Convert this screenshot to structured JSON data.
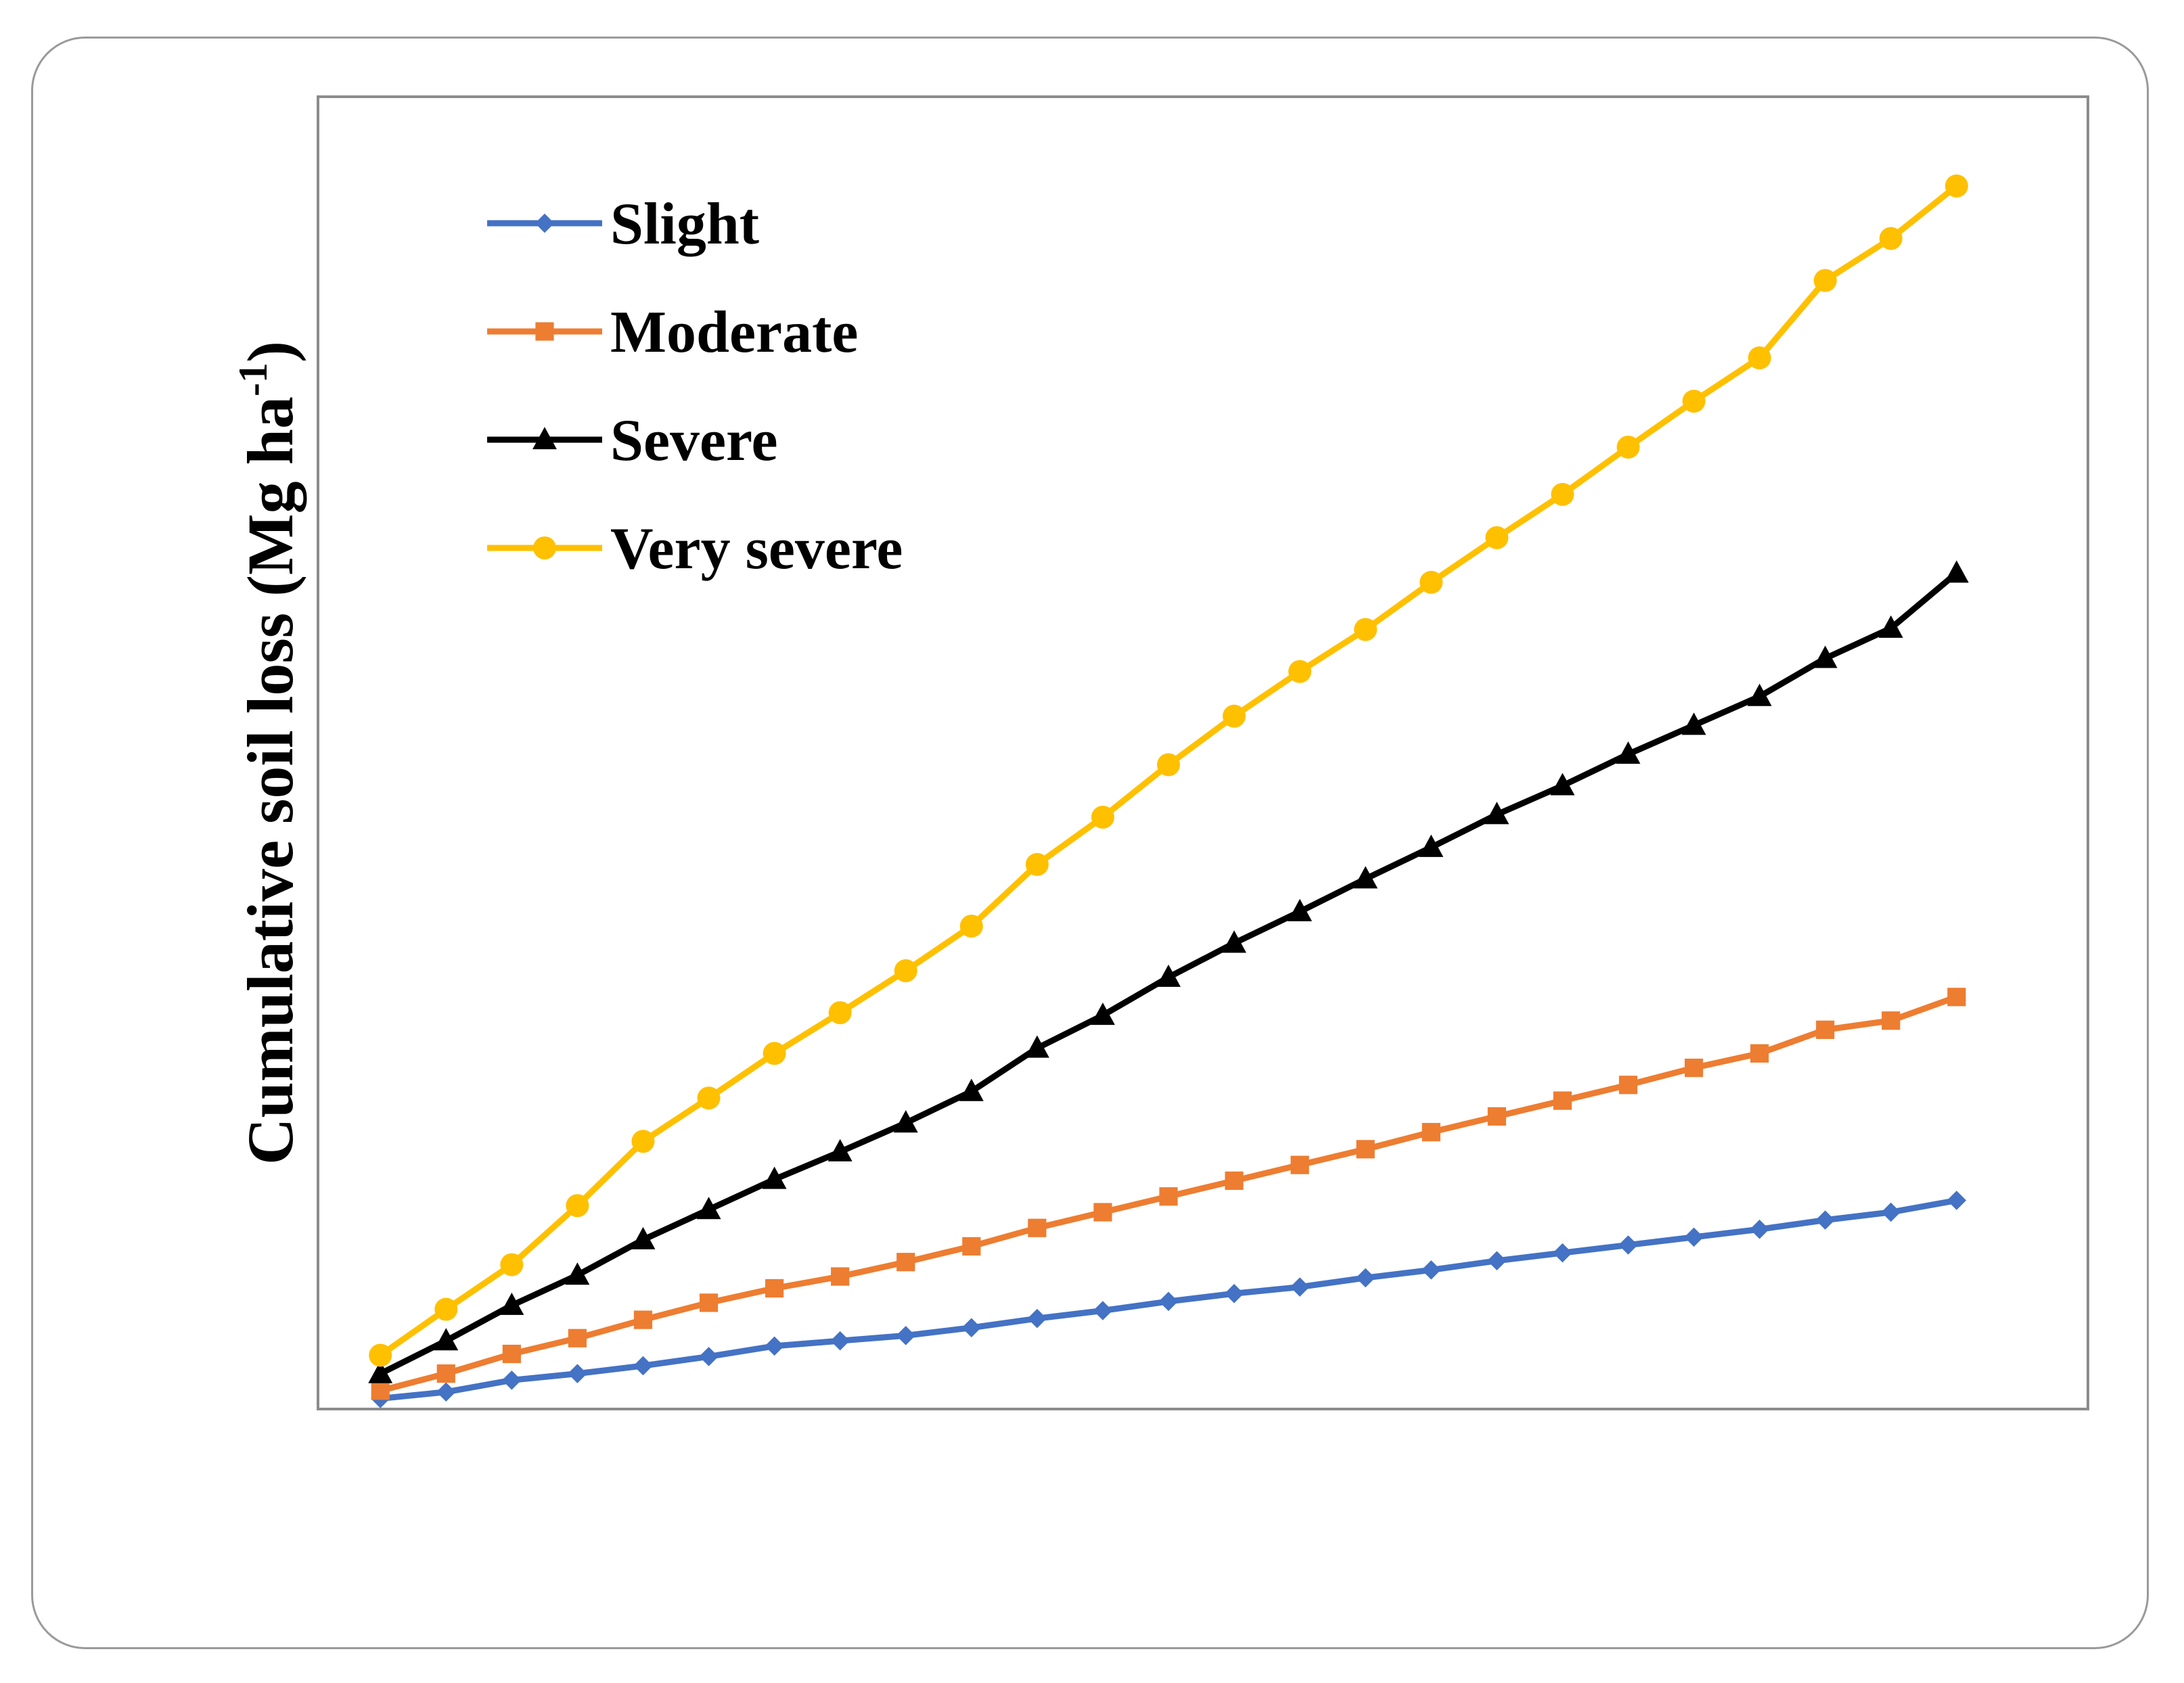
{
  "chart_data": {
    "type": "line",
    "title": "",
    "xlabel": "",
    "ylabel": {
      "main": "Cumulative soil loss (Mg ha",
      "superscript": "-1",
      "close": ")"
    },
    "x": [
      1,
      2,
      3,
      4,
      5,
      6,
      7,
      8,
      9,
      10,
      11,
      12,
      13,
      14,
      15,
      16,
      17,
      18,
      19,
      20,
      21,
      22,
      23,
      24,
      25
    ],
    "xlim": [
      0.05,
      27
    ],
    "ylim": [
      0,
      100
    ],
    "legend_position": "top-left",
    "series": [
      {
        "name": "Slight",
        "color": "#4472C4",
        "marker": "diamond",
        "values": [
          0.8,
          1.3,
          2.2,
          2.7,
          3.3,
          4.0,
          4.8,
          5.2,
          5.6,
          6.2,
          6.9,
          7.5,
          8.2,
          8.8,
          9.3,
          10.0,
          10.6,
          11.3,
          11.9,
          12.5,
          13.1,
          13.7,
          14.4,
          15.0,
          15.9
        ]
      },
      {
        "name": "Moderate",
        "color": "#ED7D31",
        "marker": "square",
        "values": [
          1.4,
          2.7,
          4.2,
          5.4,
          6.8,
          8.1,
          9.2,
          10.1,
          11.2,
          12.4,
          13.8,
          15.0,
          16.2,
          17.4,
          18.6,
          19.8,
          21.1,
          22.3,
          23.5,
          24.7,
          26.0,
          27.1,
          28.9,
          29.6,
          31.4
        ]
      },
      {
        "name": "Severe",
        "color": "#000000",
        "marker": "triangle",
        "values": [
          2.7,
          5.2,
          7.9,
          10.2,
          12.9,
          15.2,
          17.5,
          19.6,
          21.8,
          24.2,
          27.5,
          30.0,
          32.9,
          35.5,
          37.9,
          40.4,
          42.8,
          45.3,
          47.5,
          49.9,
          52.1,
          54.3,
          57.2,
          59.5,
          63.7
        ]
      },
      {
        "name": "Very severe",
        "color": "#FFC000",
        "marker": "circle",
        "values": [
          4.1,
          7.6,
          11.0,
          15.5,
          20.4,
          23.7,
          27.1,
          30.2,
          33.4,
          36.8,
          41.5,
          45.1,
          49.1,
          52.8,
          56.2,
          59.4,
          63.0,
          66.4,
          69.7,
          73.3,
          76.8,
          80.1,
          86.0,
          89.2,
          93.2
        ]
      }
    ]
  }
}
